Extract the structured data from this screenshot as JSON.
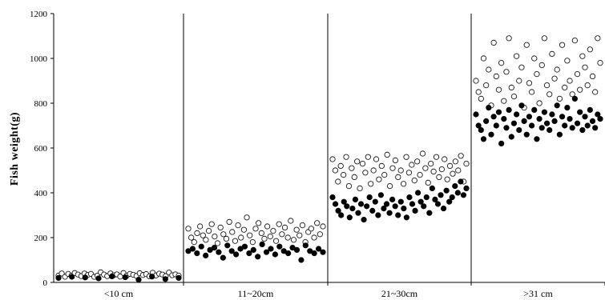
{
  "chart_data": {
    "type": "scatter",
    "title": "",
    "xlabel": "",
    "ylabel": "Fish  weight(g)",
    "ylim": [
      0,
      1200
    ],
    "yticks": [
      0,
      200,
      400,
      600,
      800,
      1000,
      1200
    ],
    "categories": [
      "<10 cm",
      "11~20cm",
      "21~30cm",
      ">31 cm"
    ],
    "grid": false,
    "legend": "none",
    "series": [
      {
        "marker": "open-circle",
        "color": "#000000",
        "groups": [
          [
            30,
            40,
            25,
            38,
            30,
            42,
            35,
            28,
            40,
            33,
            38,
            25,
            30,
            45,
            35,
            28,
            40,
            32,
            36,
            26,
            42,
            30,
            38,
            34,
            29,
            41,
            33,
            37,
            27,
            43,
            31,
            39,
            35,
            28,
            44,
            32,
            36,
            30
          ],
          [
            240,
            200,
            180,
            220,
            250,
            210,
            190,
            230,
            260,
            205,
            175,
            245,
            215,
            195,
            270,
            225,
            185,
            255,
            200,
            235,
            290,
            210,
            180,
            240,
            265,
            220,
            195,
            250,
            205,
            230,
            185,
            260,
            215,
            245,
            200,
            275,
            190,
            235,
            210,
            255,
            180,
            225,
            240,
            200,
            265,
            215,
            250
          ],
          [
            550,
            500,
            450,
            520,
            480,
            560,
            430,
            510,
            470,
            540,
            420,
            530,
            490,
            560,
            440,
            500,
            550,
            460,
            520,
            480,
            570,
            430,
            510,
            545,
            470,
            500,
            440,
            560,
            490,
            525,
            455,
            540,
            480,
            575,
            510,
            445,
            530,
            495,
            560,
            470,
            505,
            550,
            460,
            520,
            485,
            540,
            500,
            565,
            450,
            530
          ],
          [
            900,
            850,
            820,
            1000,
            880,
            950,
            790,
            1070,
            920,
            860,
            980,
            810,
            940,
            1090,
            870,
            830,
            1010,
            900,
            960,
            780,
            1060,
            890,
            850,
            1000,
            930,
            800,
            970,
            1090,
            880,
            840,
            1020,
            910,
            950,
            820,
            1060,
            870,
            990,
            900,
            840,
            1080,
            930,
            860,
            1010,
            960,
            880,
            1040,
            920,
            850,
            1090,
            980
          ]
        ]
      },
      {
        "marker": "filled-circle",
        "color": "#000000",
        "groups": [
          [
            20,
            25,
            22,
            18,
            27,
            23,
            12,
            26,
            15,
            20
          ],
          [
            140,
            150,
            130,
            160,
            120,
            145,
            155,
            135,
            110,
            165,
            140,
            125,
            150,
            160,
            130,
            145,
            115,
            170,
            135,
            150,
            125,
            160,
            140,
            130,
            155,
            145,
            100,
            165,
            140,
            130,
            150,
            135
          ],
          [
            380,
            350,
            320,
            300,
            360,
            340,
            290,
            330,
            370,
            310,
            350,
            280,
            340,
            380,
            320,
            360,
            300,
            390,
            330,
            350,
            310,
            370,
            340,
            300,
            360,
            330,
            290,
            380,
            350,
            320,
            400,
            360,
            340,
            380,
            310,
            420,
            370,
            350,
            390,
            330,
            410,
            360,
            380,
            430,
            400,
            450,
            390,
            420
          ],
          [
            750,
            700,
            680,
            640,
            720,
            780,
            660,
            740,
            700,
            760,
            620,
            730,
            690,
            770,
            650,
            710,
            750,
            680,
            790,
            720,
            660,
            740,
            700,
            770,
            640,
            730,
            690,
            760,
            710,
            680,
            750,
            720,
            790,
            660,
            740,
            700,
            780,
            730,
            690,
            820,
            710,
            760,
            680,
            740,
            700,
            770,
            720,
            690,
            750,
            730
          ]
        ]
      }
    ]
  }
}
